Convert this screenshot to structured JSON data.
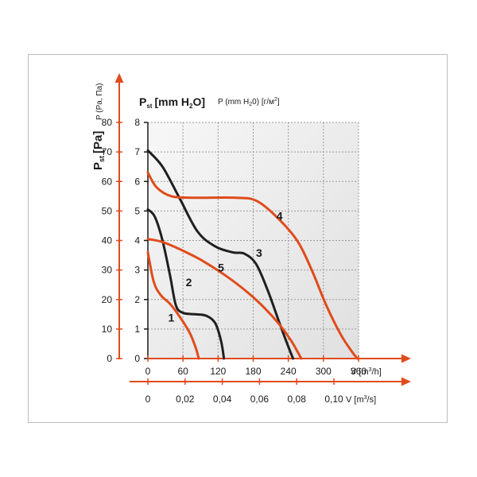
{
  "colors": {
    "accent": "#e04b1c",
    "dark_curve": "#1f1f1f",
    "grid": "#9a9a9a",
    "plot_bg_light": "#f7f7f7",
    "plot_bg_dark": "#e0e0e0"
  },
  "labels": {
    "pa_axis_label": "P",
    "pa_axis_sub": "st",
    "pa_axis_unit": "[Pa]",
    "right_axis_caption": "P (Pa, Па)",
    "mm_title_main": "P",
    "mm_title_sub": "st",
    "mm_title_unit": "[mm H",
    "mm_title_sub2": "2",
    "mm_title_end": "O]",
    "mm_subtitle": "P (mm H",
    "mm_subtitle_sub": "2",
    "mm_subtitle_end": "0) [г/м",
    "mm_subtitle_sup": "2",
    "mm_subtitle_close": "]",
    "v_m3h_prefix": "V [m",
    "v_m3h_sup": "3",
    "v_m3h_suffix": "/h]",
    "v_m3s_prefix": "V [m",
    "v_m3s_sup": "3",
    "v_m3s_suffix": "/s]"
  },
  "chart_data": {
    "type": "line",
    "xlabel": "V [m3/h]",
    "ylabel": "Pst [mm H2O]",
    "xlim": [
      0,
      360
    ],
    "ylim": [
      0,
      8
    ],
    "grid": true,
    "x_ticks": [
      "0",
      "60",
      "120",
      "180",
      "240",
      "300",
      "360"
    ],
    "y_ticks_mm": [
      "0",
      "1",
      "2",
      "3",
      "4",
      "5",
      "6",
      "7",
      "8"
    ],
    "y_ticks_pa": [
      "0",
      "10",
      "20",
      "30",
      "40",
      "50",
      "60",
      "70",
      "80"
    ],
    "x2_ticks": [
      "0",
      "0,02",
      "0,04",
      "0,06",
      "0,08",
      "0,10"
    ],
    "x2_values": [
      0,
      0.02,
      0.04,
      0.06,
      0.08,
      0.1
    ],
    "series": [
      {
        "name": "1",
        "color": "#e04b1c",
        "points": [
          [
            0,
            3.6
          ],
          [
            10,
            2.6
          ],
          [
            22,
            2.15
          ],
          [
            38,
            1.85
          ],
          [
            55,
            1.4
          ],
          [
            72,
            0.85
          ],
          [
            82,
            0.35
          ],
          [
            87,
            0
          ]
        ]
      },
      {
        "name": "2",
        "color": "#1f1f1f",
        "points": [
          [
            0,
            5.05
          ],
          [
            12,
            4.8
          ],
          [
            25,
            4.0
          ],
          [
            38,
            2.8
          ],
          [
            48,
            1.8
          ],
          [
            60,
            1.55
          ],
          [
            80,
            1.5
          ],
          [
            100,
            1.45
          ],
          [
            115,
            1.2
          ],
          [
            125,
            0.6
          ],
          [
            130,
            0
          ]
        ]
      },
      {
        "name": "3",
        "color": "#1f1f1f",
        "points": [
          [
            0,
            7.05
          ],
          [
            25,
            6.5
          ],
          [
            55,
            5.4
          ],
          [
            85,
            4.3
          ],
          [
            115,
            3.8
          ],
          [
            145,
            3.6
          ],
          [
            165,
            3.55
          ],
          [
            185,
            3.2
          ],
          [
            205,
            2.3
          ],
          [
            225,
            1.2
          ],
          [
            240,
            0.4
          ],
          [
            248,
            0
          ]
        ]
      },
      {
        "name": "4",
        "color": "#e04b1c",
        "points": [
          [
            0,
            6.3
          ],
          [
            15,
            5.8
          ],
          [
            40,
            5.5
          ],
          [
            80,
            5.45
          ],
          [
            150,
            5.45
          ],
          [
            185,
            5.35
          ],
          [
            220,
            4.8
          ],
          [
            255,
            4.0
          ],
          [
            280,
            3.0
          ],
          [
            305,
            1.8
          ],
          [
            330,
            0.8
          ],
          [
            350,
            0.2
          ],
          [
            358,
            0
          ]
        ]
      },
      {
        "name": "5",
        "color": "#e04b1c",
        "points": [
          [
            0,
            4.05
          ],
          [
            25,
            3.95
          ],
          [
            55,
            3.7
          ],
          [
            90,
            3.35
          ],
          [
            130,
            2.85
          ],
          [
            170,
            2.25
          ],
          [
            200,
            1.7
          ],
          [
            225,
            1.15
          ],
          [
            245,
            0.6
          ],
          [
            258,
            0.15
          ],
          [
            262,
            0
          ]
        ]
      }
    ],
    "annotations": [
      {
        "text": "1",
        "x": 40,
        "y": 1.25
      },
      {
        "text": "2",
        "x": 70,
        "y": 2.45
      },
      {
        "text": "3",
        "x": 190,
        "y": 3.45
      },
      {
        "text": "4",
        "x": 225,
        "y": 4.7
      },
      {
        "text": "5",
        "x": 125,
        "y": 2.95
      }
    ]
  }
}
